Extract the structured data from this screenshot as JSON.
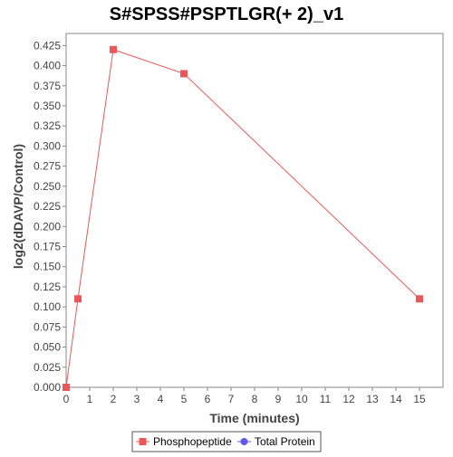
{
  "chart_data": {
    "type": "line",
    "title": "S#SPSS#PSPTLGR(+ 2)_v1",
    "xlabel": "Time (minutes)",
    "ylabel": "log2(dDAVP/Control)",
    "xlim": [
      0,
      16
    ],
    "ylim": [
      0,
      0.44
    ],
    "x_ticks": [
      0,
      1,
      2,
      3,
      4,
      5,
      6,
      7,
      8,
      9,
      10,
      11,
      12,
      13,
      14,
      15
    ],
    "y_ticks": [
      0.0,
      0.025,
      0.05,
      0.075,
      0.1,
      0.125,
      0.15,
      0.175,
      0.2,
      0.225,
      0.25,
      0.275,
      0.3,
      0.325,
      0.35,
      0.375,
      0.4,
      0.425
    ],
    "y_tick_labels": [
      "0.000",
      "0.025",
      "0.050",
      "0.075",
      "0.100",
      "0.125",
      "0.150",
      "0.175",
      "0.200",
      "0.225",
      "0.250",
      "0.275",
      "0.300",
      "0.325",
      "0.350",
      "0.375",
      "0.400",
      "0.425"
    ],
    "grid": false,
    "legend_position": "bottom-center",
    "series": [
      {
        "name": "Phosphopeptide",
        "color": "#e8585b",
        "marker": "square",
        "x": [
          0,
          0.5,
          2,
          5,
          15
        ],
        "y": [
          0.0,
          0.11,
          0.42,
          0.39,
          0.11
        ]
      },
      {
        "name": "Total Protein",
        "color": "#5b5bf0",
        "marker": "circle",
        "x": [],
        "y": []
      }
    ]
  }
}
